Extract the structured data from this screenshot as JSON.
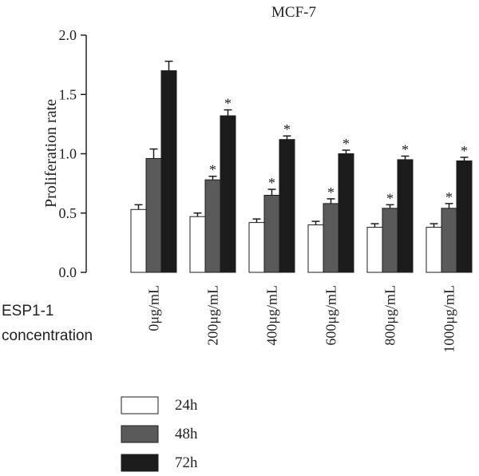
{
  "chart_data": {
    "type": "bar",
    "title": "MCF-7",
    "ylabel": "Proliferation rate",
    "xlabel": "",
    "ylim": [
      0,
      2.0
    ],
    "yticks": [
      0.0,
      0.5,
      1.0,
      1.5,
      2.0
    ],
    "ytick_labels": [
      "0.0",
      "0.5",
      "1.0",
      "1.5",
      "2.0"
    ],
    "grid": false,
    "legend_position": "bottom-left",
    "categories": [
      "0μg/mL",
      "200μg/mL",
      "400μg/mL",
      "600μg/mL",
      "800μg/mL",
      "1000μg/mL"
    ],
    "series": [
      {
        "name": "24h",
        "color": "#ffffff",
        "values": [
          0.53,
          0.47,
          0.42,
          0.4,
          0.38,
          0.38
        ],
        "errors": [
          0.04,
          0.03,
          0.03,
          0.03,
          0.03,
          0.03
        ],
        "significant": [
          false,
          false,
          false,
          false,
          false,
          false
        ]
      },
      {
        "name": "48h",
        "color": "#5a5a5a",
        "values": [
          0.96,
          0.78,
          0.65,
          0.58,
          0.54,
          0.54
        ],
        "errors": [
          0.08,
          0.03,
          0.05,
          0.04,
          0.03,
          0.04
        ],
        "significant": [
          false,
          true,
          true,
          true,
          true,
          true
        ]
      },
      {
        "name": "72h",
        "color": "#1c1c1c",
        "values": [
          1.7,
          1.32,
          1.12,
          1.0,
          0.95,
          0.94
        ],
        "errors": [
          0.08,
          0.05,
          0.03,
          0.03,
          0.03,
          0.03
        ],
        "significant": [
          false,
          true,
          true,
          true,
          true,
          true
        ]
      }
    ],
    "significance_marker": "*",
    "side_label_line1": "ESP1-1",
    "side_label_line2": "concentration"
  }
}
